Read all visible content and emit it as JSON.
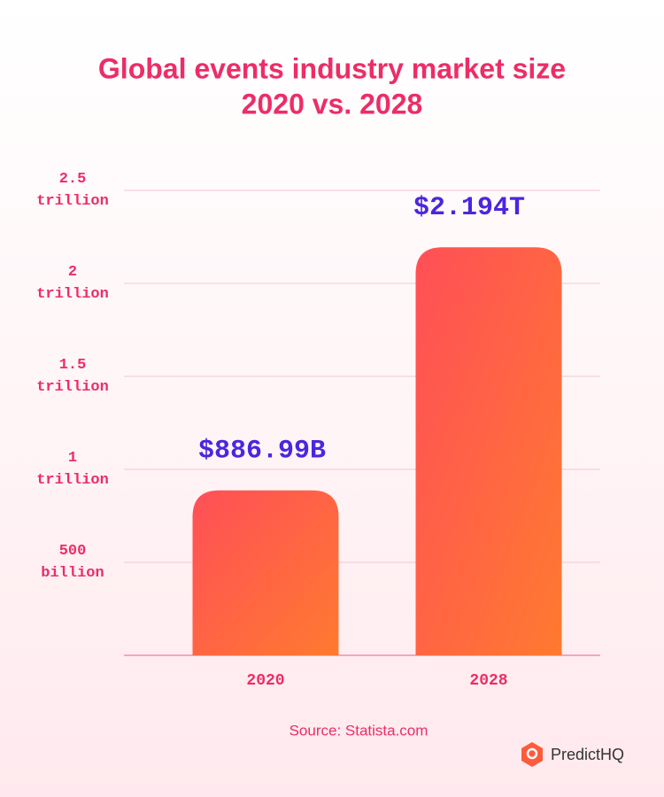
{
  "chart_data": {
    "type": "bar",
    "title": "Global events industry market size",
    "subtitle": "2020 vs. 2028",
    "categories": [
      "2020",
      "2028"
    ],
    "values": [
      886.99,
      2194
    ],
    "value_labels": [
      "$886.99B",
      "$2.194T"
    ],
    "ylim": [
      0,
      2500
    ],
    "yticks": [
      {
        "value": 500,
        "label": "500 billion"
      },
      {
        "value": 1000,
        "label": "1 trillion"
      },
      {
        "value": 1500,
        "label": "1.5 trillion"
      },
      {
        "value": 2000,
        "label": "2 trillion"
      },
      {
        "value": 2500,
        "label": "2.5 trillion"
      }
    ],
    "grid": true,
    "color": "#ff5a4e",
    "source": "Source: Statista.com"
  },
  "brand": "PredictHQ"
}
